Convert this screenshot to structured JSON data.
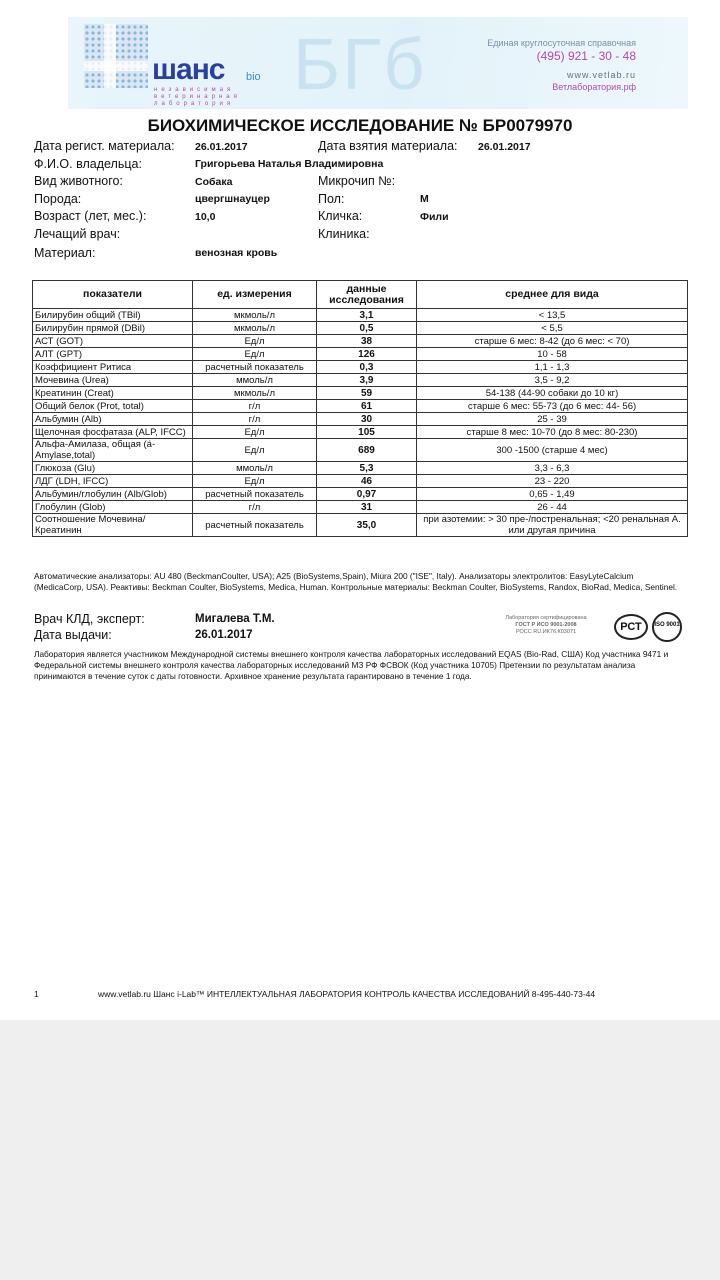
{
  "header": {
    "logo_text": "шанс",
    "logo_bio": "bio",
    "logo_sub": "независимая ветеринарная лаборатория",
    "watermark": "БГб",
    "hotline_label": "Единая круглосуточная справочная",
    "phone": "(495)  921 - 30 - 48",
    "site1": "www.vetlab.ru",
    "site2": "Ветлаборатория.рф"
  },
  "title": "БИОХИМИЧЕСКОЕ ИССЛЕДОВАНИЕ  № БР0079970",
  "info": {
    "reg_date_label": "Дата регист. материала:",
    "reg_date": "26.01.2017",
    "take_date_label": "Дата взятия материала:",
    "take_date": "26.01.2017",
    "owner_label": "Ф.И.О. владельца:",
    "owner": "Григорьева Наталья Владимировна",
    "species_label": "Вид животного:",
    "species": "Собака",
    "chip_label": "Микрочип №:",
    "breed_label": "Порода:",
    "breed": "цвергшнауцер",
    "sex_label": "Пол:",
    "sex": "М",
    "age_label": "Возраст (лет, мес.):",
    "age": "10,0",
    "name_label": "Кличка:",
    "name": "Фили",
    "doctor_label": "Лечащий врач:",
    "clinic_label": "Клиника:",
    "material_label": "Материал:",
    "material": "венозная кровь"
  },
  "table": {
    "headers": [
      "показатели",
      "ед. измерения",
      "данные исследования",
      "среднее для вида"
    ],
    "rows": [
      [
        "Билирубин общий (TBil)",
        "мкмоль/л",
        "3,1",
        "< 13,5"
      ],
      [
        "Билирубин прямой (DBil)",
        "мкмоль/л",
        "0,5",
        "< 5,5"
      ],
      [
        "АСТ (GOT)",
        "Ед/л",
        "38",
        "старше 6 мес: 8-42 (до 6 мес: < 70)"
      ],
      [
        "АЛТ (GPT)",
        "Ед/л",
        "126",
        "10 - 58"
      ],
      [
        "Коэффициент Ритиса",
        "расчетный показатель",
        "0,3",
        "1,1 - 1,3"
      ],
      [
        "Мочевина (Urea)",
        "ммоль/л",
        "3,9",
        "3,5 - 9,2"
      ],
      [
        "Креатинин (Creat)",
        "мкмоль/л",
        "59",
        "54-138 (44-90 собаки до 10 кг)"
      ],
      [
        "Общий белок (Prot, total)",
        "г/л",
        "61",
        "старше 6 мес: 55-73 (до 6 мес: 44- 56)"
      ],
      [
        "Альбумин (Alb)",
        "г/л",
        "30",
        "25 - 39"
      ],
      [
        "Щелочная фосфатаза (ALP, IFCC)",
        "Ед/л",
        "105",
        "старше 8 мес: 10-70 (до 8 мес: 80-230)"
      ],
      [
        "Альфа-Амилаза, общая (á-Amylase,total)",
        "Ед/л",
        "689",
        "300 -1500 (старше 4 мес)"
      ],
      [
        "Глюкоза (Glu)",
        "ммоль/л",
        "5,3",
        "3,3 - 6,3"
      ],
      [
        "ЛДГ (LDH, IFCC)",
        "Ед/л",
        "46",
        "23 - 220"
      ],
      [
        "Альбумин/глобулин (Alb/Glob)",
        "расчетный показатель",
        "0,97",
        "0,65 - 1,49"
      ],
      [
        "Глобулин (Glob)",
        "г/л",
        "31",
        "26 - 44"
      ],
      [
        "Соотношение Мочевина/Креатинин",
        "расчетный показатель",
        "35,0",
        "при азотемии: > 30 пре-/постренальная; <20 ренальная А. или другая причина"
      ]
    ]
  },
  "analyzers_note": "Автоматические анализаторы: AU 480 (BeckmanCoulter, USA); A25 (BioSystems,Spain), Miura 200 (\"ISE\", Italy). Анализаторы электролитов: EasyLyteCalcium (MedicaCorp, USA). Реактивы: Beckman Coulter, BioSystems, Medica, Human. Контрольные материалы: Beckman Coulter, BioSystems, Randox, BioRad, Medica, Sentinel.",
  "signature": {
    "expert_label": "Врач КЛД, эксперт:",
    "expert": "Мигалева Т.М.",
    "issue_label": "Дата выдачи:",
    "issue_date": "26.01.2017"
  },
  "certification": {
    "line1": "Лаборатория сертифицирована",
    "line2": "ГОСТ Р ИСО 9001-2008",
    "line3": "РОСС RU.ИК76.К03071",
    "pct": "РСТ",
    "iso": "ISO 9001"
  },
  "lab_note": "Лаборатория  является участником Международной  системы внешнего контроля качества лабораторных исследований  EQAS (Bio-Rad, США) Код участника 9471 и Федеральной системы внешнего контроля качества лабораторных исследований МЗ РФ ФСВОК (Код участника 10705) Претензии по результатам анализа принимаются в течение суток с даты готовности. Архивное хранение результата гарантировано в течение 1 года.",
  "footer": {
    "page": "1",
    "text": "www.vetlab.ru Шанс i-Lab™ ИНТЕЛЛЕКТУАЛЬНАЯ ЛАБОРАТОРИЯ КОНТРОЛЬ КАЧЕСТВА ИССЛЕДОВАНИЙ 8-495-440-73-44"
  }
}
